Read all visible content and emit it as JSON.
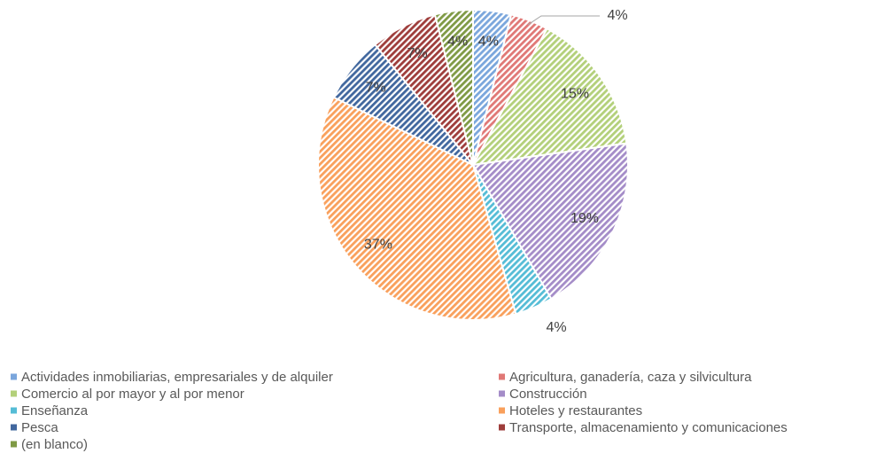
{
  "chart_data": {
    "type": "pie",
    "categories": [
      "Actividades inmobiliarias, empresariales y de alquiler",
      "Agricultura, ganadería, caza y silvicultura",
      "Comercio al por mayor y al por menor",
      "Construcción",
      "Enseñanza",
      "Hoteles y restaurantes",
      "Pesca",
      "Transporte, almacenamiento y comunicaciones",
      "(en blanco)"
    ],
    "values": [
      4,
      4,
      15,
      19,
      4,
      37,
      7,
      7,
      4
    ],
    "value_labels": [
      "4%",
      "4%",
      "15%",
      "19%",
      "4%",
      "37%",
      "7%",
      "7%",
      "4%"
    ],
    "colors": [
      "#7aa6dc",
      "#e07876",
      "#b3d07a",
      "#a48cc8",
      "#55bcd6",
      "#f9a05c",
      "#41679e",
      "#9e3d3b",
      "#7f9a45"
    ],
    "legend": "bottom"
  }
}
